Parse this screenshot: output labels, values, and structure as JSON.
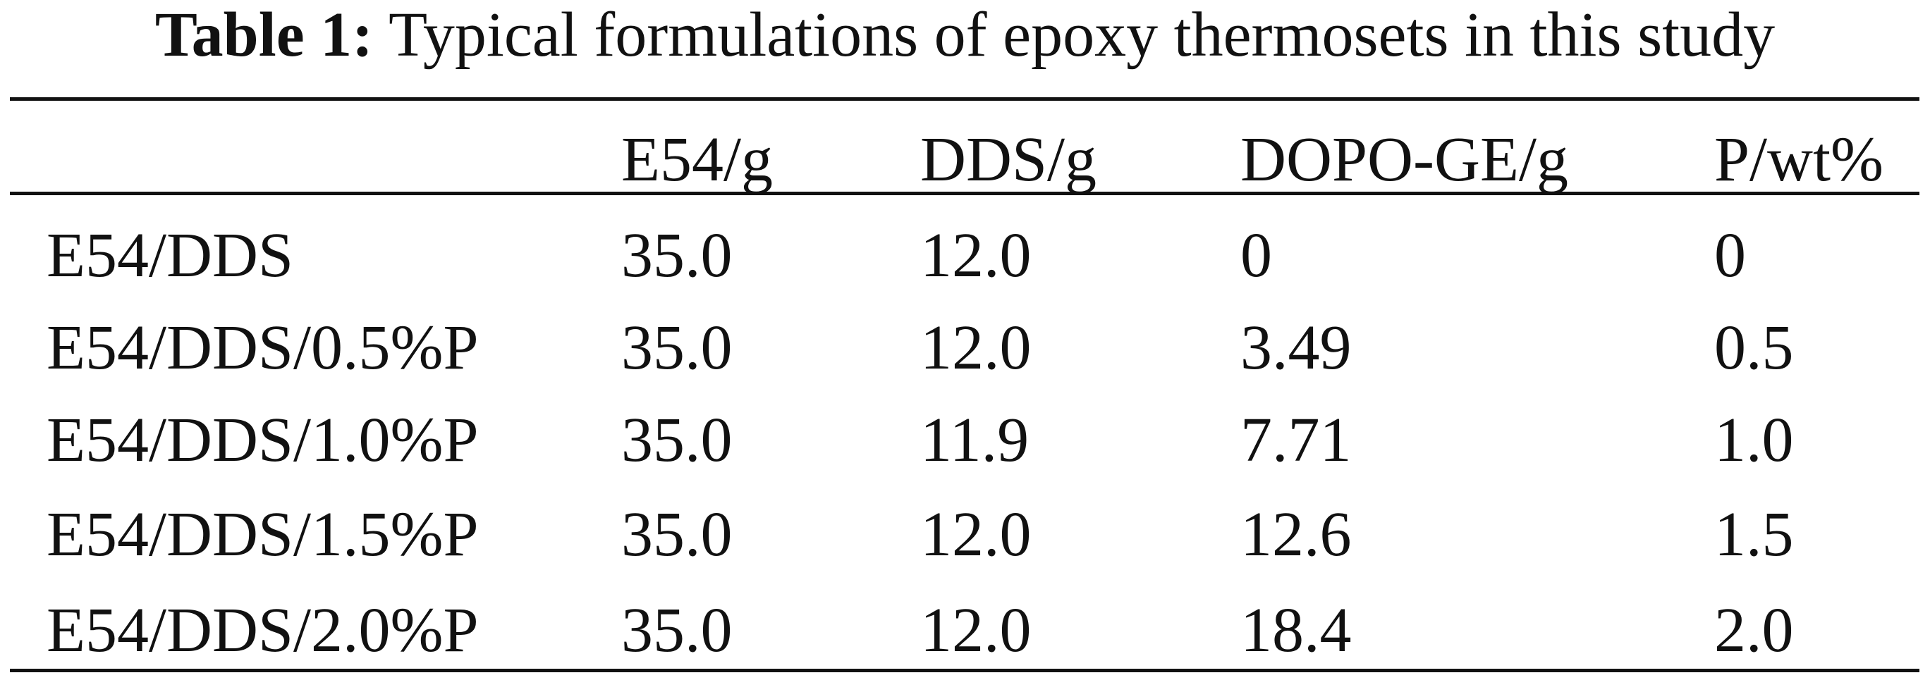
{
  "caption": {
    "label": "Table 1:",
    "text": "Typical formulations of epoxy thermosets in this study"
  },
  "table": {
    "header": [
      "E54/g",
      "DDS/g",
      "DOPO-GE/g",
      "P/wt%"
    ],
    "rows": [
      [
        "E54/DDS",
        "35.0",
        "12.0",
        "0",
        "0"
      ],
      [
        "E54/DDS/0.5%P",
        "35.0",
        "12.0",
        "3.49",
        "0.5"
      ],
      [
        "E54/DDS/1.0%P",
        "35.0",
        "11.9",
        "7.71",
        "1.0"
      ],
      [
        "E54/DDS/1.5%P",
        "35.0",
        "12.0",
        "12.6",
        "1.5"
      ],
      [
        "E54/DDS/2.0%P",
        "35.0",
        "12.0",
        "18.4",
        "2.0"
      ]
    ]
  }
}
